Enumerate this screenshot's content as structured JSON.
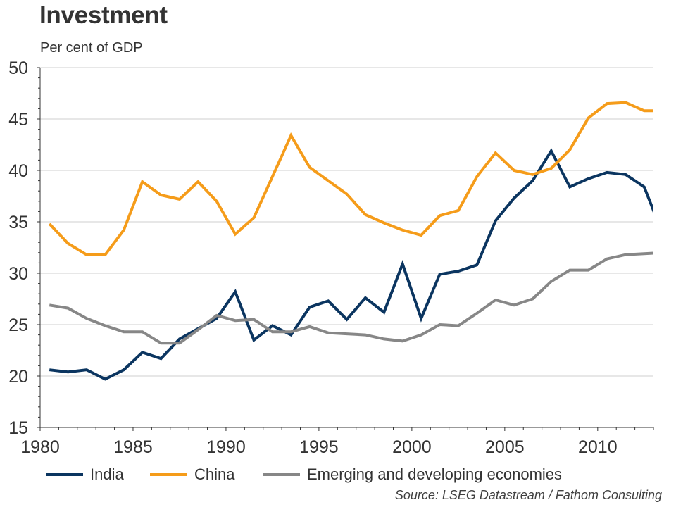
{
  "header": {
    "title": "Investment",
    "subtitle": "Per cent of GDP"
  },
  "source": "Source: LSEG Datastream / Fathom Consulting",
  "chart_data": {
    "type": "line",
    "title": "Investment",
    "subtitle": "Per cent of GDP",
    "xlabel": "",
    "ylabel": "Per cent of GDP",
    "xlim": [
      1980,
      2013
    ],
    "ylim": [
      15,
      50
    ],
    "x_ticks": [
      1980,
      1985,
      1990,
      1995,
      2000,
      2005,
      2010
    ],
    "x_tick_labels": [
      "1980",
      "1985",
      "1990",
      "1995",
      "2000",
      "2005",
      "2010"
    ],
    "y_ticks": [
      15,
      20,
      25,
      30,
      35,
      40,
      45,
      50
    ],
    "y_tick_labels": [
      "15",
      "20",
      "25",
      "30",
      "35",
      "40",
      "45",
      "50"
    ],
    "grid": true,
    "legend_position": "bottom",
    "x": [
      1980,
      1981,
      1982,
      1983,
      1984,
      1985,
      1986,
      1987,
      1988,
      1989,
      1990,
      1991,
      1992,
      1993,
      1994,
      1995,
      1996,
      1997,
      1998,
      1999,
      2000,
      2001,
      2002,
      2003,
      2004,
      2005,
      2006,
      2007,
      2008,
      2009,
      2010,
      2011,
      2012,
      2013
    ],
    "series": [
      {
        "name": "India",
        "color": "#0B3560",
        "values": [
          20.6,
          20.4,
          20.6,
          19.7,
          20.6,
          22.3,
          21.7,
          23.6,
          24.6,
          25.6,
          28.2,
          23.5,
          24.9,
          24.0,
          26.7,
          27.3,
          25.5,
          27.6,
          26.2,
          30.9,
          25.6,
          29.9,
          30.2,
          30.8,
          35.1,
          37.3,
          39.0,
          41.9,
          38.4,
          39.2,
          39.8,
          39.6,
          38.4,
          33.8
        ]
      },
      {
        "name": "China",
        "color": "#F59C1A",
        "values": [
          34.8,
          32.9,
          31.8,
          31.8,
          34.2,
          38.9,
          37.6,
          37.2,
          38.9,
          37.0,
          33.8,
          35.4,
          39.4,
          43.4,
          40.3,
          39.0,
          37.7,
          35.7,
          34.9,
          34.2,
          33.7,
          35.6,
          36.1,
          39.4,
          41.7,
          40.0,
          39.6,
          40.2,
          42.0,
          45.1,
          46.5,
          46.6,
          45.8,
          45.8
        ]
      },
      {
        "name": "Emerging and developing economies",
        "color": "#878787",
        "values": [
          26.9,
          26.6,
          25.6,
          24.9,
          24.3,
          24.3,
          23.2,
          23.2,
          24.5,
          25.9,
          25.4,
          25.5,
          24.3,
          24.3,
          24.8,
          24.2,
          24.1,
          24.0,
          23.6,
          23.4,
          24.0,
          25.0,
          24.9,
          26.1,
          27.4,
          26.9,
          27.5,
          29.2,
          30.3,
          30.3,
          31.4,
          31.8,
          31.9,
          32.0
        ]
      }
    ]
  }
}
